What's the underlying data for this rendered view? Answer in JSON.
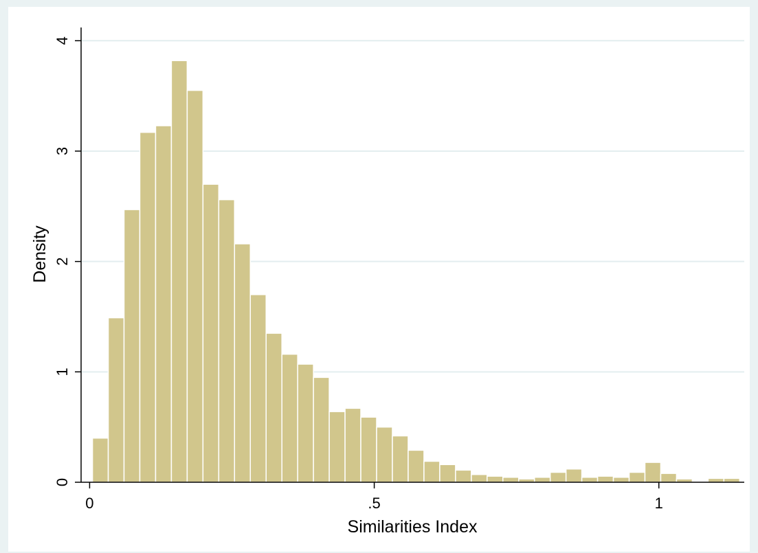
{
  "chart_data": {
    "type": "bar",
    "title": "",
    "xlabel": "Similarities Index",
    "ylabel": "Density",
    "xlim": [
      -0.015,
      1.15
    ],
    "ylim": [
      0,
      4.12
    ],
    "x_ticks": [
      {
        "value": 0,
        "label": "0"
      },
      {
        "value": 0.5,
        "label": ".5"
      },
      {
        "value": 1,
        "label": "1"
      }
    ],
    "y_ticks": [
      {
        "value": 0,
        "label": "0"
      },
      {
        "value": 1,
        "label": "1"
      },
      {
        "value": 2,
        "label": "2"
      },
      {
        "value": 3,
        "label": "3"
      },
      {
        "value": 4,
        "label": "4"
      }
    ],
    "grid": "horizontal",
    "bin_start": 0.005,
    "bin_width": 0.02773,
    "values": [
      0.4,
      1.49,
      2.47,
      3.17,
      3.23,
      3.82,
      3.55,
      2.7,
      2.56,
      2.16,
      1.7,
      1.35,
      1.16,
      1.07,
      0.95,
      0.64,
      0.67,
      0.59,
      0.5,
      0.42,
      0.29,
      0.19,
      0.16,
      0.11,
      0.07,
      0.055,
      0.045,
      0.03,
      0.045,
      0.09,
      0.12,
      0.045,
      0.055,
      0.045,
      0.09,
      0.18,
      0.08,
      0.03,
      0.0,
      0.035,
      0.035
    ],
    "colors": {
      "bar_fill": "#d1c68c",
      "bar_stroke": "#ffffff",
      "plot_bg": "#ffffff",
      "outer_bg": "#eaf2f3",
      "grid": "#e3eeef",
      "axis": "#000000"
    }
  }
}
